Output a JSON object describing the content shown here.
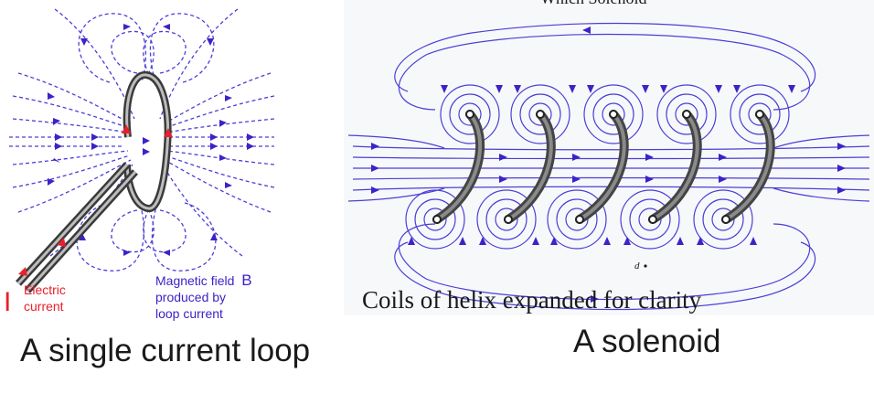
{
  "loop_panel": {
    "current_letter": "I",
    "current_label_line1": "Electric",
    "current_label_line2": "current",
    "field_label_line1": "Magnetic field",
    "field_symbol": "B",
    "field_label_line2": "produced by",
    "field_label_line3": "loop current",
    "caption": "A single current loop"
  },
  "solenoid_panel": {
    "header_fragment": "Which Solenoid",
    "label_d": "d",
    "inner_caption": "Coils of helix expanded for clarity",
    "caption": "A solenoid"
  },
  "colors": {
    "field_lines": "#4a3fd6",
    "current_arrows": "#e8202a",
    "wire": "#3a3a3a"
  }
}
